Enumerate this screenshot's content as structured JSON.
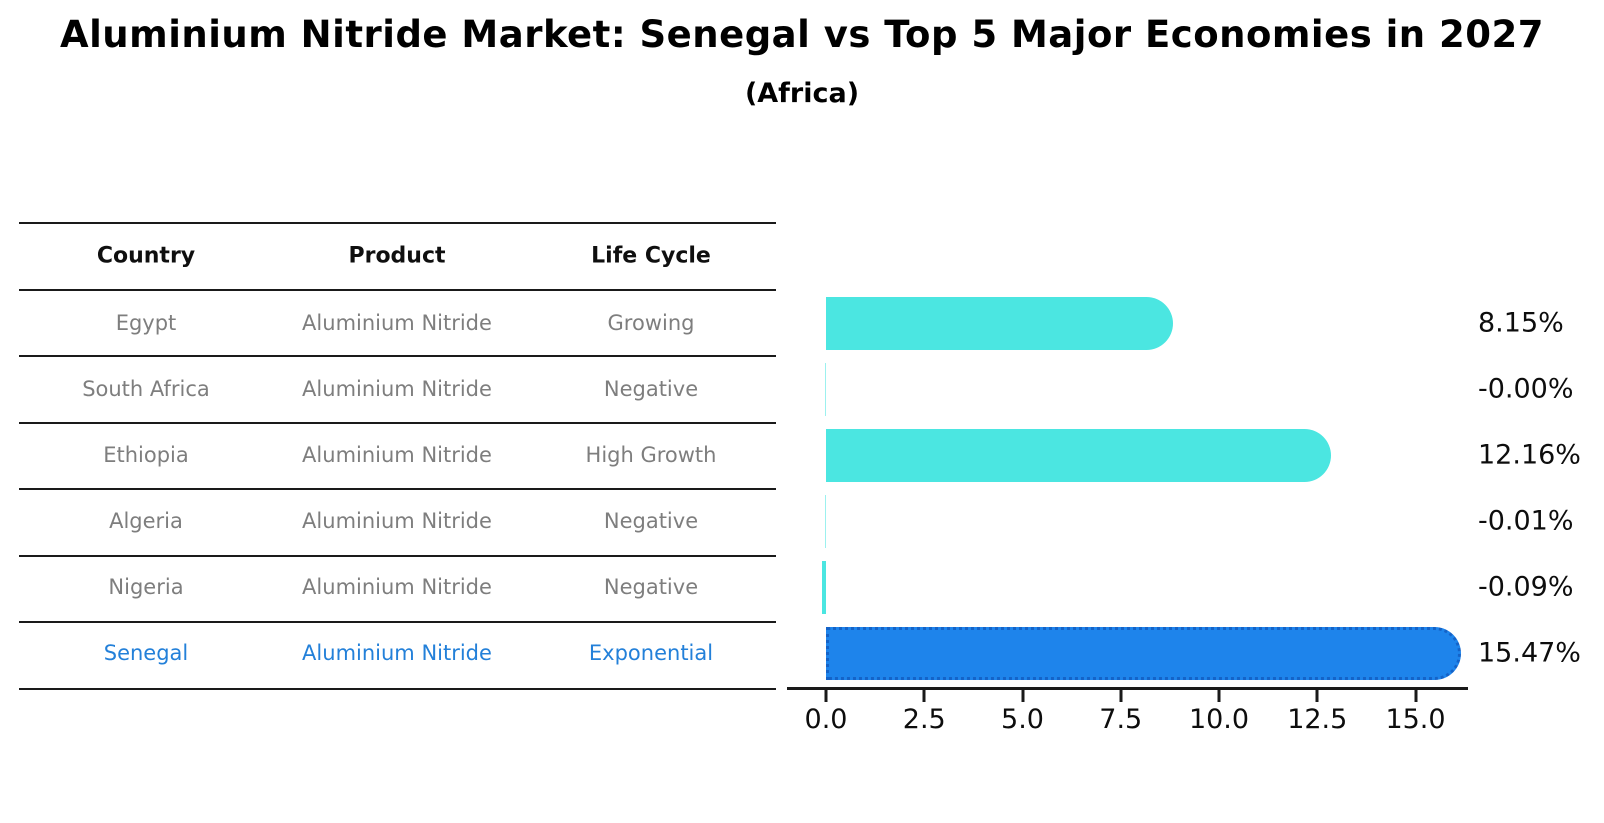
{
  "header": {
    "title": "Aluminium Nitride Market: Senegal vs Top 5 Major Economies in 2027",
    "subtitle": "(Africa)"
  },
  "table": {
    "columns": [
      "Country",
      "Product",
      "Life Cycle"
    ],
    "rows": [
      {
        "country": "Egypt",
        "product": "Aluminium Nitride",
        "life_cycle": "Growing",
        "highlight": false
      },
      {
        "country": "South Africa",
        "product": "Aluminium Nitride",
        "life_cycle": "Negative",
        "highlight": false
      },
      {
        "country": "Ethiopia",
        "product": "Aluminium Nitride",
        "life_cycle": "High Growth",
        "highlight": false
      },
      {
        "country": "Algeria",
        "product": "Aluminium Nitride",
        "life_cycle": "Negative",
        "highlight": false
      },
      {
        "country": "Nigeria",
        "product": "Aluminium Nitride",
        "life_cycle": "Negative",
        "highlight": false
      },
      {
        "country": "Senegal",
        "product": "Aluminium Nitride",
        "life_cycle": "Exponential",
        "highlight": true
      }
    ]
  },
  "chart_data": {
    "type": "bar",
    "orientation": "horizontal",
    "title": "Aluminium Nitride Market: Senegal vs Top 5 Major Economies in 2027",
    "subtitle": "(Africa)",
    "categories": [
      "Egypt",
      "South Africa",
      "Ethiopia",
      "Algeria",
      "Nigeria",
      "Senegal"
    ],
    "values": [
      8.15,
      -0.0,
      12.16,
      -0.01,
      -0.09,
      15.47
    ],
    "value_labels": [
      "8.15%",
      "-0.00%",
      "12.16%",
      "-0.01%",
      "-0.09%",
      "15.47%"
    ],
    "x_ticks": [
      0.0,
      2.5,
      5.0,
      7.5,
      10.0,
      12.5,
      15.0
    ],
    "x_tick_labels": [
      "0.0",
      "2.5",
      "5.0",
      "7.5",
      "10.0",
      "12.5",
      "15.0"
    ],
    "xlim": [
      -1.0,
      16.3
    ],
    "grid": false,
    "legend": "none",
    "colors": {
      "bar": "#4BE6E1",
      "highlight_bar": "#1E84EB",
      "highlight_border": "#1463C8",
      "highlight_text": "#2380D9",
      "row_text": "#7E7E7E",
      "header_text": "#0F0F0F",
      "axis": "#1A1A1A"
    }
  }
}
